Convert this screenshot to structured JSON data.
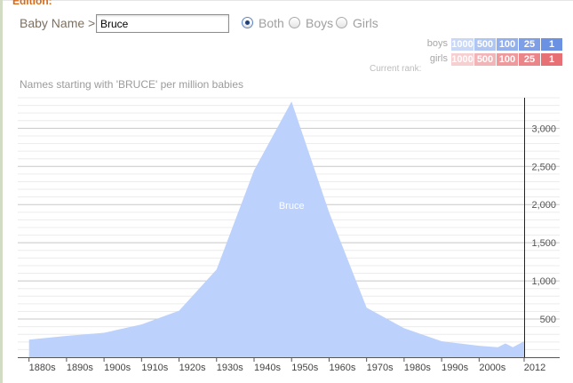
{
  "header": {
    "edition_label": "Edition:",
    "name_label": "Baby Name >",
    "name_value": "Bruce",
    "gender_options": [
      {
        "label": "Both",
        "checked": true
      },
      {
        "label": "Boys",
        "checked": false
      },
      {
        "label": "Girls",
        "checked": false
      }
    ]
  },
  "rank_legend": {
    "rows": [
      {
        "label": "boys",
        "cells": [
          "1000",
          "500",
          "100",
          "25",
          "1"
        ],
        "colors": [
          "#c9d8f6",
          "#b0c6f2",
          "#93b0ec",
          "#7e9fe6",
          "#6a91e2"
        ]
      },
      {
        "label": "girls",
        "cells": [
          "1000",
          "500",
          "100",
          "25",
          "1"
        ],
        "colors": [
          "#f6cfd1",
          "#f1b5b8",
          "#ee9a9d",
          "#ea8589",
          "#e77074"
        ]
      }
    ],
    "current_rank_label": "Current rank:"
  },
  "chart_data": {
    "type": "area",
    "title": "Names starting with 'BRUCE' per million babies",
    "series": [
      {
        "name": "Bruce",
        "color": "#bcd1fb",
        "x": [
          1880,
          1890,
          1900,
          1910,
          1920,
          1930,
          1940,
          1950,
          1960,
          1970,
          1980,
          1990,
          2000,
          2005,
          2007,
          2009,
          2012
        ],
        "values": [
          230,
          280,
          320,
          430,
          610,
          1150,
          2450,
          3350,
          1900,
          650,
          380,
          210,
          150,
          130,
          180,
          130,
          210
        ]
      }
    ],
    "x_ticks": [
      "1880s",
      "1890s",
      "1900s",
      "1910s",
      "1920s",
      "1930s",
      "1940s",
      "1950s",
      "1960s",
      "1970s",
      "1980s",
      "1990s",
      "2000s",
      "2012"
    ],
    "y_ticks": [
      "500",
      "1,000",
      "1,500",
      "2,000",
      "2,500",
      "3,000"
    ],
    "xlim": [
      1877,
      2012
    ],
    "ylim": [
      0,
      3400
    ],
    "grid": true
  }
}
